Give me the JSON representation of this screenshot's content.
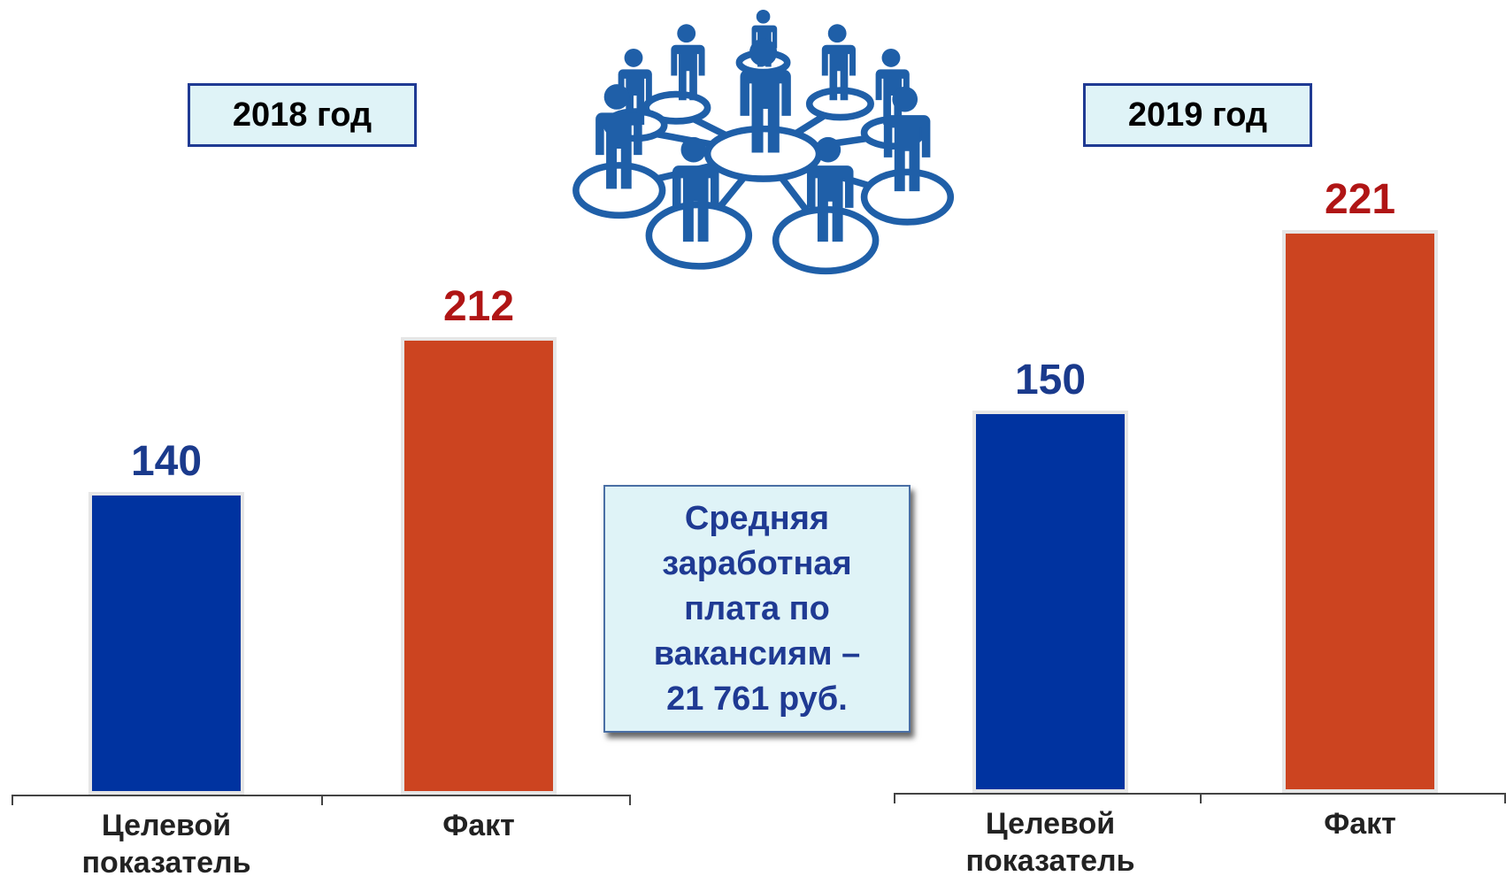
{
  "chart_data": [
    {
      "type": "bar",
      "title": "2018 год",
      "categories": [
        "Целевой показатель",
        "Факт"
      ],
      "values": [
        140,
        212
      ],
      "colors": [
        "#0033a0",
        "#cc4420"
      ],
      "label_colors": [
        "#1a3a8c",
        "#b01515"
      ]
    },
    {
      "type": "bar",
      "title": "2019 год",
      "categories": [
        "Целевой показатель",
        "Факт"
      ],
      "values": [
        150,
        221
      ],
      "colors": [
        "#0033a0",
        "#cc4420"
      ],
      "label_colors": [
        "#1a3a8c",
        "#b01515"
      ]
    }
  ],
  "note": [
    "Средняя",
    "заработная",
    "плата по",
    "вакансиям –",
    "21 761 руб."
  ]
}
